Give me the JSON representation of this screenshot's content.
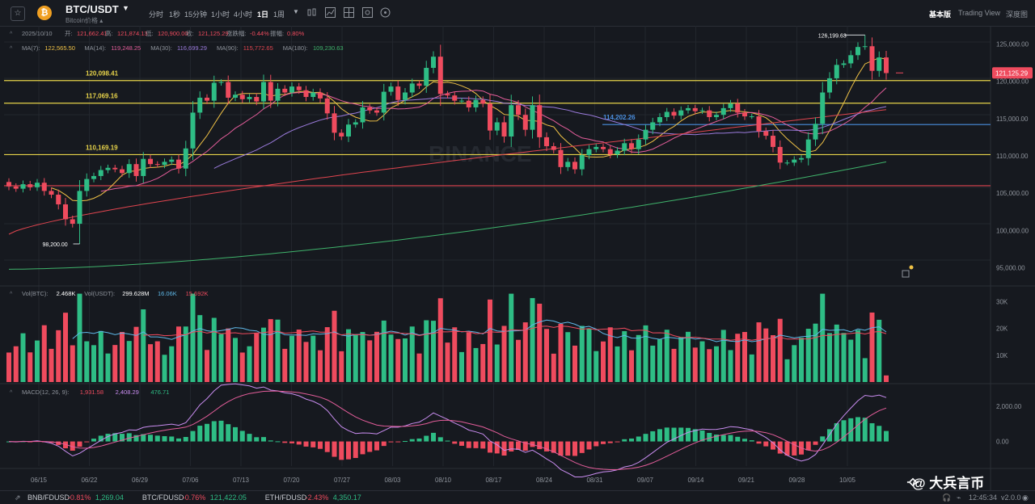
{
  "header": {
    "symbol": "BTC/USDT",
    "symbol_sub": "Bitcoin价格 ▴",
    "coin_glyph": "₿",
    "timeframes": [
      {
        "label": "分时",
        "active": false
      },
      {
        "label": "1秒",
        "active": false
      },
      {
        "label": "15分钟",
        "active": false
      },
      {
        "label": "1小时",
        "active": false
      },
      {
        "label": "4小时",
        "active": false
      },
      {
        "label": "1日",
        "active": true
      },
      {
        "label": "1周",
        "active": false
      }
    ],
    "modes": [
      {
        "label": "基本版",
        "active": true
      },
      {
        "label": "Trading View",
        "active": false
      },
      {
        "label": "深度图",
        "active": false
      }
    ],
    "icons": [
      "chevron-down-icon",
      "candles-icon",
      "indicator-icon",
      "grid-icon",
      "settings-icon",
      "fullscreen-icon"
    ]
  },
  "ohlc_line": {
    "date": "2025/10/10",
    "open_label": "开:",
    "open": "121,662.41",
    "high_label": "高:",
    "high": "121,874.13",
    "low_label": "低:",
    "low": "120,900.00",
    "close_label": "收:",
    "close": "121,125.29",
    "chg_label": "涨跌幅:",
    "chg": "-0.44%",
    "amp_label": "振幅:",
    "amp": "0.80%"
  },
  "ma_line": [
    {
      "label": "MA(7):",
      "value": "122,565.50",
      "color": "#f0c246"
    },
    {
      "label": "MA(14):",
      "value": "119,248.25",
      "color": "#e35d9a"
    },
    {
      "label": "MA(30):",
      "value": "116,699.29",
      "color": "#9b7bdc"
    },
    {
      "label": "MA(90):",
      "value": "115,772.65",
      "color": "#e0454f"
    },
    {
      "label": "MA(180):",
      "value": "109,230.63",
      "color": "#3fb36b"
    }
  ],
  "vol_line": [
    {
      "label": "Vol(BTC):",
      "value": "2.468K",
      "color": "#ffffff"
    },
    {
      "label": "Vol(USDT):",
      "value": "299.628M",
      "color": "#ffffff"
    },
    {
      "label": "",
      "value": "16.06K",
      "color": "#5fb8e8"
    },
    {
      "label": "",
      "value": "15.692K",
      "color": "#ef4b5e"
    }
  ],
  "macd_line": [
    {
      "label": "MACD(12, 26, 9):",
      "value": "1,931.58",
      "color": "#ef4b5e"
    },
    {
      "label": "",
      "value": "2,408.29",
      "color": "#c98df0"
    },
    {
      "label": "",
      "value": "476.71",
      "color": "#2ebd85"
    }
  ],
  "price_axis": [
    "125,000.00",
    "120,000.00",
    "115,000.00",
    "110,000.00",
    "105,000.00",
    "100,000.00",
    "95,000.00"
  ],
  "vol_axis": [
    "30K",
    "20K",
    "10K"
  ],
  "macd_axis": [
    "2,000.00",
    "0.00"
  ],
  "current_price": "121,125.29",
  "date_axis": [
    "06/15",
    "06/22",
    "06/29",
    "07/06",
    "07/13",
    "07/20",
    "07/27",
    "08/03",
    "08/10",
    "08/17",
    "08/24",
    "08/31",
    "09/07",
    "09/14",
    "09/21",
    "09/28",
    "10/05"
  ],
  "hlines": [
    {
      "label": "120,098.41",
      "price": 120098.41,
      "color": "#e7d34a"
    },
    {
      "label": "117,069.16",
      "price": 117069.16,
      "color": "#e7d34a"
    },
    {
      "label": "110,169.19",
      "price": 110169.19,
      "color": "#e7d34a"
    },
    {
      "label": "114,202.26",
      "price": 114202.26,
      "color": "#4a8fe0"
    },
    {
      "label": "",
      "price": 106000,
      "color": "#e0454f"
    }
  ],
  "annotations": {
    "high": "126,199.63",
    "low": "98,200.00"
  },
  "watermark": {
    "text": "@ 大兵言币",
    "bg_text": "BINANCE"
  },
  "footer": {
    "tickers": [
      {
        "pair": "BNB/FDUSD",
        "chg": "-0.81%",
        "price": "1,269.04"
      },
      {
        "pair": "BTC/FDUSD",
        "chg": "-0.76%",
        "price": "121,422.05"
      },
      {
        "pair": "ETH/FDUSD",
        "chg": "-2.43%",
        "price": "4,350.17"
      }
    ],
    "time": "12:45:34",
    "version": "v2.0.0"
  },
  "colors": {
    "up": "#2ebd85",
    "down": "#ef4b5e",
    "bg": "#16191f",
    "grid": "#22262d"
  },
  "chart_data": {
    "type": "candlestick",
    "candles_daily_close": [
      105900,
      105600,
      106200,
      105800,
      106400,
      105300,
      104800,
      103500,
      101500,
      100900,
      105300,
      106900,
      107300,
      108100,
      108400,
      108200,
      107700,
      108900,
      107300,
      109600,
      108900,
      108800,
      109200,
      109500,
      108300,
      111000,
      115800,
      117800,
      117400,
      119800,
      119900,
      117800,
      118200,
      117600,
      117900,
      117300,
      119900,
      117400,
      119000,
      118500,
      119300,
      118800,
      117900,
      118500,
      117700,
      115700,
      113100,
      112600,
      114200,
      114500,
      116500,
      116100,
      115800,
      118600,
      119300,
      117500,
      118500,
      119700,
      119400,
      121800,
      123300,
      118300,
      118100,
      117400,
      117400,
      116500,
      117500,
      117000,
      113400,
      114500,
      112600,
      116800,
      115500,
      113500,
      116800,
      112500,
      111300,
      110800,
      108500,
      109200,
      108200,
      110100,
      110900,
      111200,
      110900,
      110200,
      110700,
      111700,
      110900,
      112200,
      113500,
      114500,
      115200,
      115900,
      115400,
      116100,
      116400,
      116000,
      116100,
      115200,
      115500,
      116400,
      117000,
      115800,
      115300,
      115300,
      113300,
      112700,
      111200,
      109100,
      109100,
      109500,
      109700,
      112200,
      114300,
      118500,
      120400,
      122200,
      122400,
      123500,
      124600,
      124700,
      121400,
      123200,
      121100
    ],
    "ma_series": [
      "MA(7)",
      "MA(14)",
      "MA(30)",
      "MA(90)",
      "MA(180)"
    ],
    "volume_ylim": [
      0,
      35000
    ],
    "macd_ylim": [
      -1400,
      3200
    ],
    "price_ylim": [
      93000,
      127000
    ]
  }
}
